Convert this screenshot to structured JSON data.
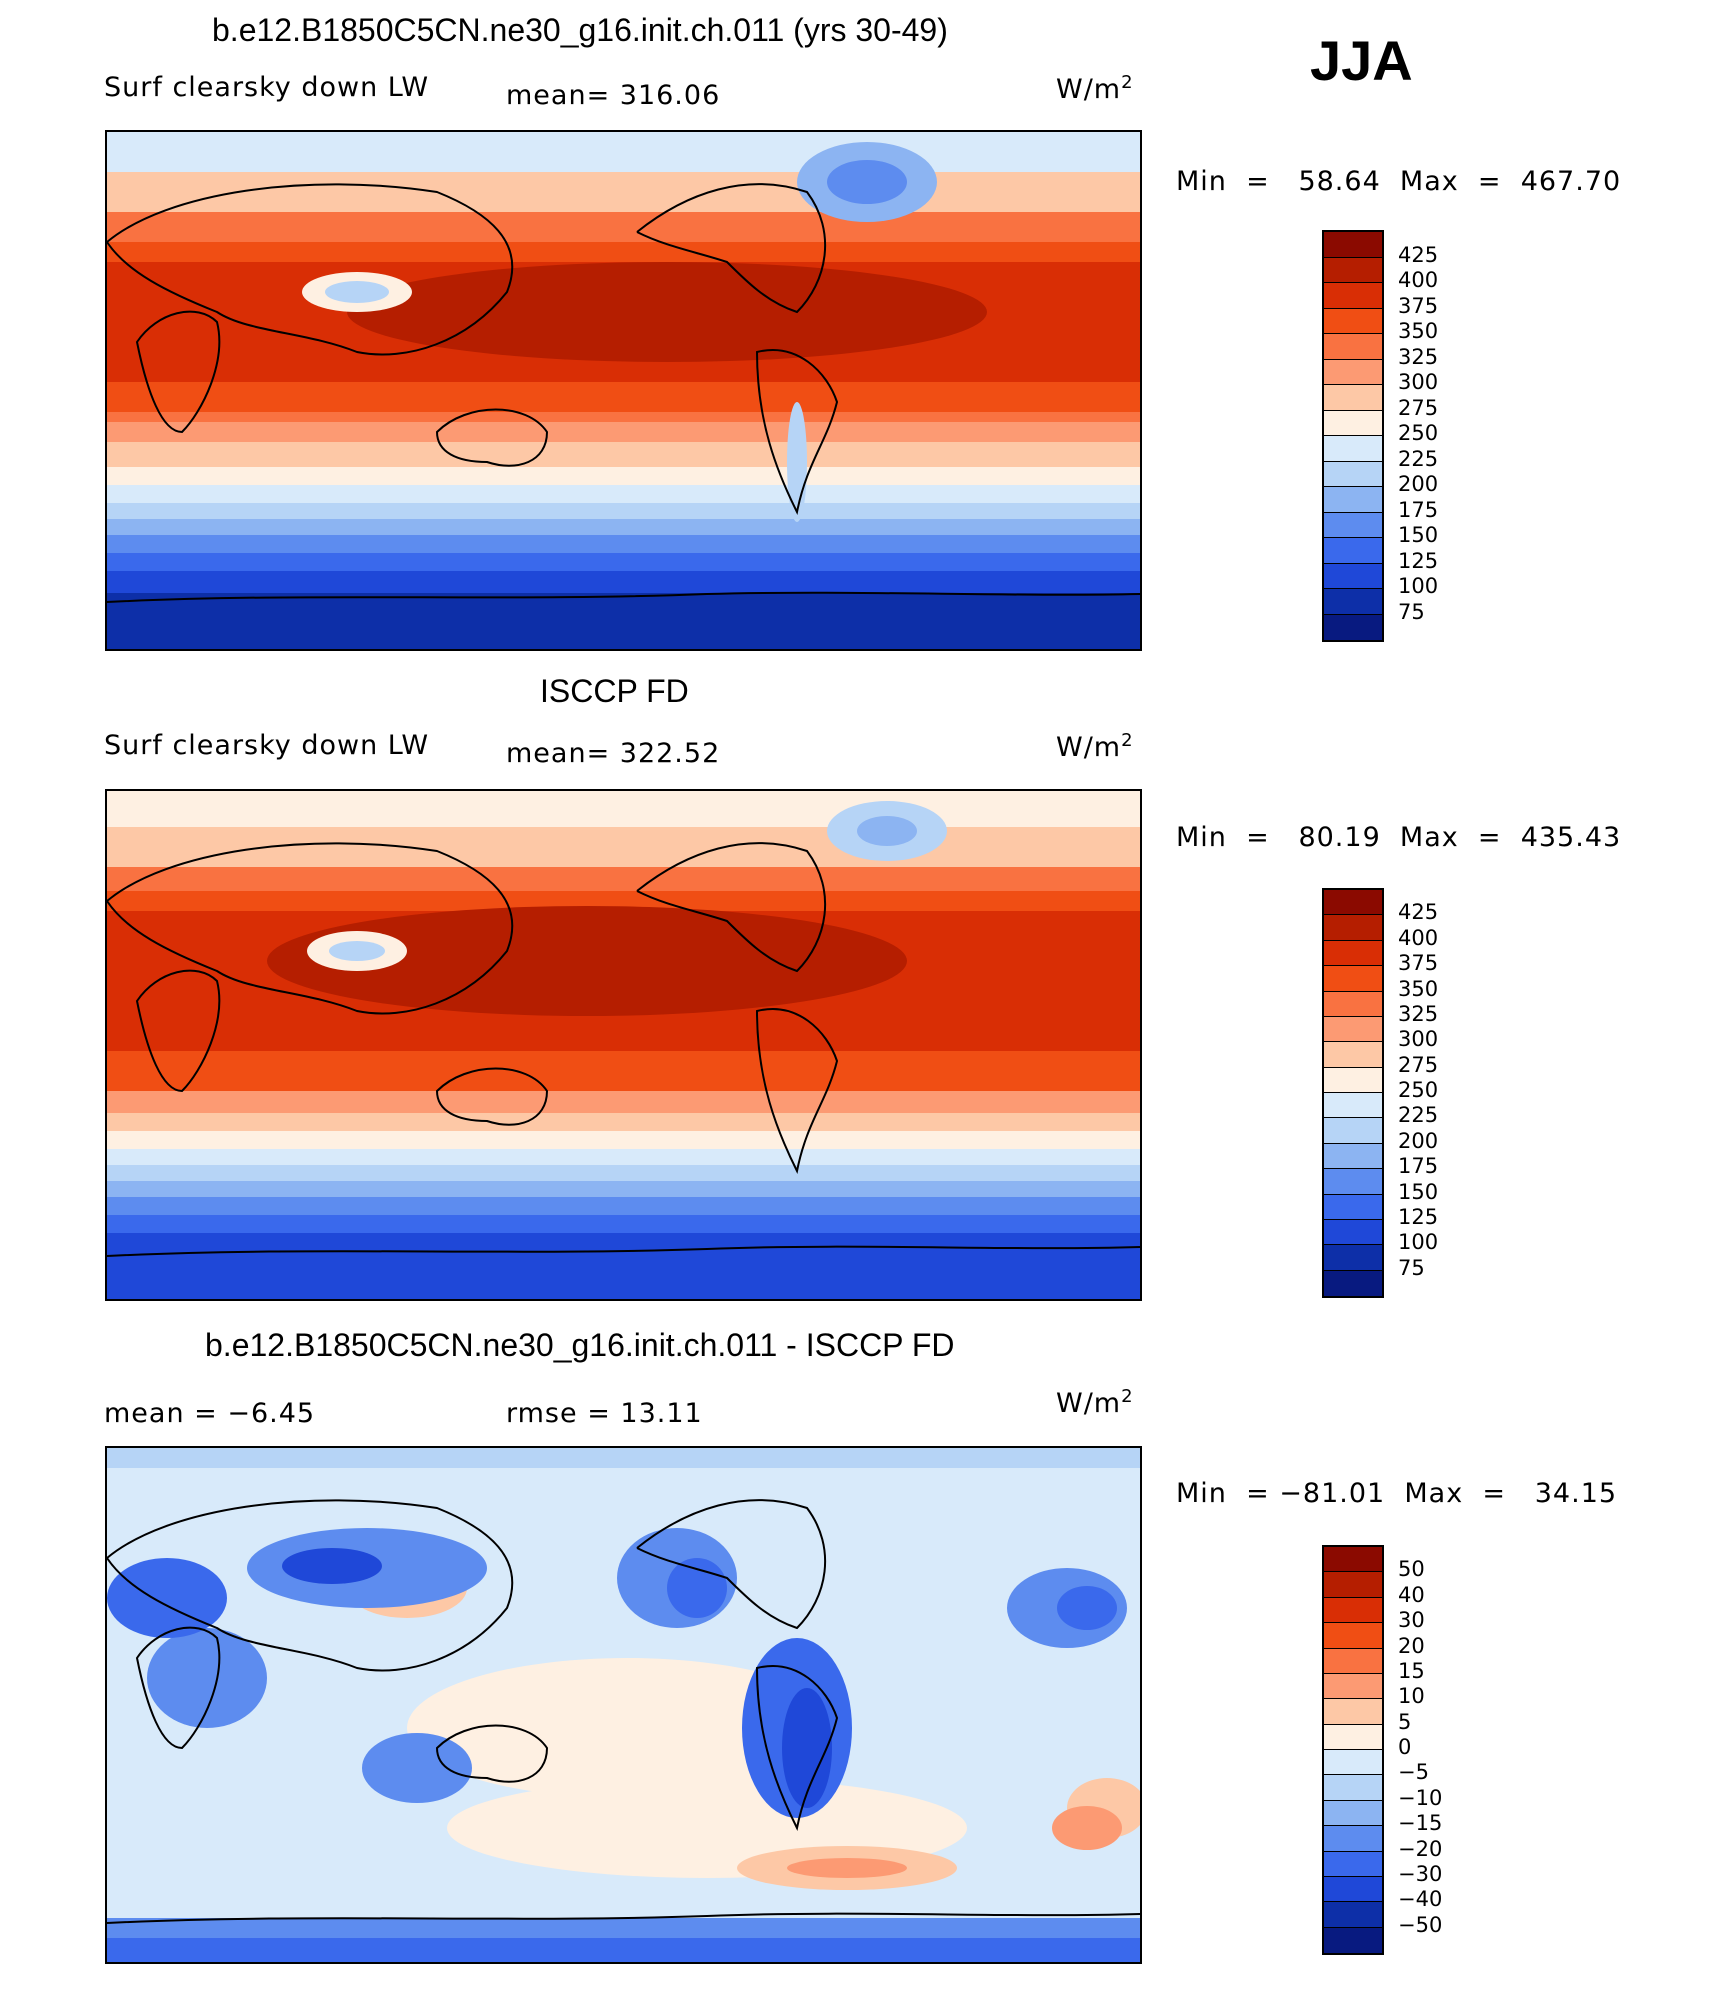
{
  "season": "JJA",
  "panels": [
    {
      "title": "b.e12.B1850C5CN.ne30_g16.init.ch.011 (yrs 30-49)",
      "variable": "Surf  clearsky  down  LW",
      "stat1": "mean=  316.06",
      "stat2": "",
      "units": "W/m",
      "units_sup": "2",
      "min_label": "Min  =",
      "min_value": "58.64",
      "max_label": "Max  =",
      "max_value": "467.70",
      "colorbar_labels": [
        "425",
        "400",
        "375",
        "350",
        "325",
        "300",
        "275",
        "250",
        "225",
        "200",
        "175",
        "150",
        "125",
        "100",
        "75"
      ],
      "colorbar_colors": [
        "#8b0a00",
        "#b51e00",
        "#d92e05",
        "#f04e14",
        "#f97241",
        "#fc9a73",
        "#fdc8a6",
        "#fef0e2",
        "#d8eafa",
        "#b6d4f6",
        "#8cb4f2",
        "#5d8cef",
        "#3a69ec",
        "#1f48d8",
        "#0d2fa8",
        "#081a80"
      ]
    },
    {
      "title": "ISCCP FD",
      "variable": "Surf  clearsky  down  LW",
      "stat1": "mean=  322.52",
      "stat2": "",
      "units": "W/m",
      "units_sup": "2",
      "min_label": "Min  =",
      "min_value": "80.19",
      "max_label": "Max  =",
      "max_value": "435.43",
      "colorbar_labels": [
        "425",
        "400",
        "375",
        "350",
        "325",
        "300",
        "275",
        "250",
        "225",
        "200",
        "175",
        "150",
        "125",
        "100",
        "75"
      ],
      "colorbar_colors": [
        "#8b0a00",
        "#b51e00",
        "#d92e05",
        "#f04e14",
        "#f97241",
        "#fc9a73",
        "#fdc8a6",
        "#fef0e2",
        "#d8eafa",
        "#b6d4f6",
        "#8cb4f2",
        "#5d8cef",
        "#3a69ec",
        "#1f48d8",
        "#0d2fa8",
        "#081a80"
      ]
    },
    {
      "title": "b.e12.B1850C5CN.ne30_g16.init.ch.011 - ISCCP FD",
      "variable": "",
      "stat1": "mean  =    −6.45",
      "stat2": "rmse  =    13.11",
      "units": "W/m",
      "units_sup": "2",
      "min_label": "Min  =",
      "min_value": "−81.01",
      "max_label": "Max  =",
      "max_value": "34.15",
      "colorbar_labels": [
        "50",
        "40",
        "30",
        "20",
        "15",
        "10",
        "5",
        "0",
        "−5",
        "−10",
        "−15",
        "−20",
        "−30",
        "−40",
        "−50"
      ],
      "colorbar_colors": [
        "#8b0a00",
        "#b51e00",
        "#d92e05",
        "#f04e14",
        "#f97241",
        "#fc9a73",
        "#fdc8a6",
        "#fef0e2",
        "#d8eafa",
        "#b6d4f6",
        "#8cb4f2",
        "#5d8cef",
        "#3a69ec",
        "#1f48d8",
        "#0d2fa8",
        "#081a80"
      ]
    }
  ]
}
